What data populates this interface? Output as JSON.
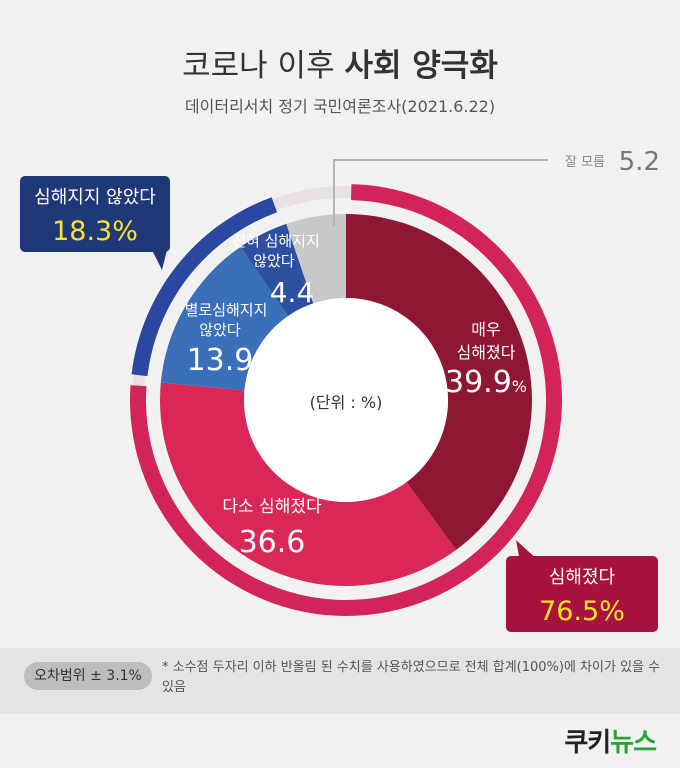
{
  "title_plain": "코로나 이후 ",
  "title_bold": "사회 양극화",
  "subtitle": "데이터리서치 정기 국민여론조사(2021.6.22)",
  "chart_data": {
    "type": "pie",
    "unit_label": "(단위 : %)",
    "inner_segments": [
      {
        "name": "잘 모름",
        "value": 5.2,
        "color": "#c8c8c8"
      },
      {
        "name": "매우 심해졌다",
        "value": 39.9,
        "color": "#8e1734"
      },
      {
        "name": "다소 심해졌다",
        "value": 36.6,
        "color": "#d92757"
      },
      {
        "name": "별로심해지지 않았다",
        "value": 13.9,
        "color": "#3a6fba"
      },
      {
        "name": "전혀 심해지지 않았다",
        "value": 4.4,
        "color": "#2d4fa0"
      }
    ],
    "outer_groups": [
      {
        "name": "심해졌다",
        "value": 76.5,
        "color": "#d3245a"
      },
      {
        "name": "심해지지 않았다",
        "value": 18.3,
        "color": "#2a47a2"
      }
    ]
  },
  "labels": {
    "dontknow_name": "잘 모름",
    "dontknow_value": "5.2",
    "very_line1": "매우",
    "very_line2": "심해졌다",
    "very_value": "39.9",
    "somewhat_name": "다소 심해졌다",
    "somewhat_value": "36.6",
    "notmuch_line1": "별로심해지지",
    "notmuch_line2": "않았다",
    "notmuch_value": "13.9",
    "notatall_line1": "전혀 심해지지",
    "notatall_line2": "않았다",
    "notatall_value": "4.4",
    "percent_sign": "%",
    "worse_name": "심해졌다",
    "worse_value": "76.5%",
    "notworse_name": "심해지지 않았다",
    "notworse_value": "18.3%"
  },
  "footer": {
    "margin_of_error": "오차범위 ± 3.1%",
    "note": "* 소수점 두자리 이하 반올림 된 수치를 사용하였으므로 전체 합계(100%)에 차이가 있을 수 있음",
    "logo_a": "쿠키",
    "logo_b": "뉴스"
  }
}
